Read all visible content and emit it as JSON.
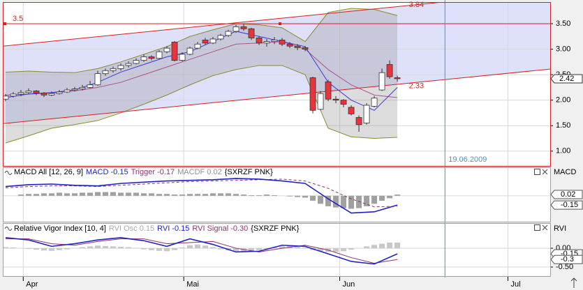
{
  "chart_data": [
    {
      "type": "candlestick",
      "xlim": [
        -0.27,
        70.9
      ],
      "ylim": [
        0.71,
        3.91
      ],
      "yticks": [
        {
          "value": 1,
          "label": "1.00"
        },
        {
          "value": 1.5,
          "label": "1.50"
        },
        {
          "value": 2,
          "label": "2.00"
        },
        {
          "value": 2.5,
          "label": "2.50"
        },
        {
          "value": 3,
          "label": "3.00"
        },
        {
          "value": 3.5,
          "label": "3.50"
        }
      ],
      "xticks": [
        {
          "value": 2.3,
          "label": "Apr"
        },
        {
          "value": 23.2,
          "label": "Mai"
        },
        {
          "value": 43.5,
          "label": "Jun"
        },
        {
          "value": 65.4,
          "label": "Jul"
        }
      ],
      "grid": true,
      "up_color": "#ffffff",
      "down_color": "#e8343c",
      "open": [
        2.02,
        2.08,
        2.12,
        2.15,
        2.18,
        2.14,
        2.1,
        2.13,
        2.16,
        2.2,
        2.22,
        2.25,
        2.3,
        2.52,
        2.58,
        2.62,
        2.68,
        2.72,
        2.78,
        2.85,
        2.82,
        2.95,
        3.14,
        2.78,
        2.9,
        3.02,
        3.18,
        3.12,
        3.2,
        3.27,
        3.35,
        3.44,
        3.4,
        3.22,
        3.12,
        3.15,
        3.18,
        3.1,
        3.06,
        3.03,
        2.44,
        1.82,
        2.36,
        2.02,
        2.0,
        1.86,
        1.66,
        1.55,
        1.88,
        2.2,
        2.7,
        2.44
      ],
      "high": [
        2.12,
        2.16,
        2.2,
        2.23,
        2.2,
        2.16,
        2.17,
        2.2,
        2.24,
        2.26,
        2.3,
        2.38,
        2.58,
        2.62,
        2.66,
        2.72,
        2.76,
        2.82,
        2.9,
        2.88,
        2.98,
        3.06,
        3.16,
        2.94,
        3.05,
        3.14,
        3.22,
        3.24,
        3.3,
        3.38,
        3.48,
        3.5,
        3.42,
        3.26,
        3.2,
        3.24,
        3.22,
        3.14,
        3.1,
        3.06,
        2.46,
        2.18,
        2.4,
        2.08,
        2.02,
        1.9,
        1.7,
        1.94,
        2.08,
        2.62,
        2.78,
        2.48
      ],
      "low": [
        1.98,
        2.05,
        2.08,
        2.12,
        2.1,
        2.06,
        2.08,
        2.11,
        2.14,
        2.17,
        2.19,
        2.23,
        2.28,
        2.48,
        2.54,
        2.58,
        2.64,
        2.7,
        2.75,
        2.78,
        2.8,
        2.92,
        2.76,
        2.76,
        2.88,
        3.0,
        3.08,
        3.1,
        3.17,
        3.24,
        3.32,
        3.36,
        3.18,
        3.08,
        3.05,
        3.1,
        3.06,
        3.02,
        2.98,
        2.96,
        1.74,
        1.8,
        1.98,
        1.94,
        1.86,
        1.7,
        1.38,
        1.52,
        1.86,
        2.18,
        2.42,
        2.36
      ],
      "close": [
        2.08,
        2.12,
        2.15,
        2.18,
        2.14,
        2.1,
        2.13,
        2.16,
        2.2,
        2.22,
        2.25,
        2.3,
        2.52,
        2.58,
        2.62,
        2.68,
        2.72,
        2.78,
        2.85,
        2.82,
        2.95,
        3.02,
        2.78,
        2.9,
        3.02,
        3.1,
        3.12,
        3.2,
        3.27,
        3.35,
        3.44,
        3.4,
        3.22,
        3.12,
        3.15,
        3.18,
        3.1,
        3.06,
        3.03,
        3.0,
        1.8,
        2.13,
        2.02,
        2.0,
        1.92,
        1.73,
        1.52,
        1.9,
        2.04,
        2.54,
        2.46,
        2.42
      ],
      "overlay_x": [
        0,
        3,
        6,
        9,
        12,
        15,
        18,
        21,
        24,
        27,
        30,
        33,
        36,
        39,
        42,
        45,
        48,
        51
      ],
      "band": {
        "color": "#8a8a30",
        "fill": "#9a9a9a",
        "upper": [
          2.55,
          2.57,
          2.55,
          2.54,
          2.62,
          2.75,
          2.9,
          3.05,
          3.25,
          3.38,
          3.5,
          3.48,
          3.42,
          3.15,
          3.72,
          3.8,
          3.78,
          3.66
        ],
        "lower": [
          1.16,
          1.3,
          1.45,
          1.52,
          1.6,
          1.75,
          1.92,
          2.1,
          2.3,
          2.48,
          2.6,
          2.68,
          2.68,
          2.5,
          1.45,
          1.28,
          1.25,
          1.27
        ]
      },
      "overlays": [
        {
          "color": "#b0508c",
          "values": [
            2.1,
            2.12,
            2.14,
            2.18,
            2.25,
            2.35,
            2.5,
            2.65,
            2.8,
            2.95,
            3.1,
            3.12,
            3.15,
            3.0,
            2.6,
            2.3,
            2.1,
            2.05
          ]
        },
        {
          "color": "#3a3adc",
          "values": [
            2.05,
            2.12,
            2.15,
            2.2,
            2.35,
            2.55,
            2.7,
            2.85,
            2.95,
            3.15,
            3.35,
            3.25,
            3.15,
            3.05,
            2.35,
            2.0,
            1.8,
            2.25
          ]
        }
      ],
      "channel_color": "#dfe1fa",
      "line_color": "#d42020",
      "trend_lines": [
        {
          "x": [
            -0.27,
            57.3
          ],
          "y": [
            3.06,
            3.93
          ]
        },
        {
          "x": [
            -0.27,
            70.9
          ],
          "y": [
            1.54,
            2.61
          ]
        }
      ],
      "hline": {
        "value": 3.5,
        "label": "3.5"
      },
      "annotations": [
        {
          "x": 51.6,
          "value": 3.84,
          "label": "3.84"
        },
        {
          "x": 51.6,
          "value": 2.33,
          "label": "2.33"
        }
      ],
      "last_price": {
        "value": 2.42,
        "label": "2.42"
      },
      "crosshair": {
        "x": 57.2,
        "label": "19.06.2009",
        "color": "#5b8db0"
      }
    },
    {
      "type": "macd",
      "title_parts": [
        {
          "text": "MACD All [12, 26, 9]",
          "color": "#000000"
        },
        {
          "text": "MACD -0.15",
          "color": "#2020c0"
        },
        {
          "text": "Trigger -0.17",
          "color": "#903070"
        },
        {
          "text": "MACDF 0.02",
          "color": "#909090"
        },
        {
          "text": "{SXRZF PNK}",
          "color": "#000000"
        }
      ],
      "axis_label": "MACD",
      "ylim": [
        -0.42,
        0.45
      ],
      "hist_color": "#a0a0a0",
      "histogram": [
        null,
        null,
        0.02,
        0.03,
        0.03,
        0.04,
        0.04,
        0.05,
        0.04,
        0.04,
        0.05,
        0.05,
        0.06,
        0.06,
        0.06,
        0.05,
        0.05,
        0.05,
        0.04,
        0.04,
        0.03,
        0.03,
        0.02,
        0.02,
        0.03,
        0.03,
        0.03,
        0.04,
        0.04,
        0.04,
        0.03,
        0.02,
        0.01,
        0.01,
        0.02,
        0.01,
        0.0,
        -0.01,
        -0.02,
        -0.03,
        -0.08,
        -0.13,
        -0.17,
        -0.19,
        -0.2,
        -0.21,
        -0.2,
        -0.17,
        -0.13,
        -0.08,
        -0.04,
        0.02
      ],
      "series": [
        {
          "color": "#903070",
          "dashed": true,
          "values": [
            0.13,
            0.15,
            0.16,
            0.16,
            0.15,
            0.17,
            0.19,
            0.21,
            0.23,
            0.24,
            0.25,
            0.26,
            0.27,
            0.24,
            0.12,
            -0.05,
            -0.18,
            -0.17
          ]
        },
        {
          "color": "#2020c0",
          "dashed": false,
          "values": [
            0.15,
            0.18,
            0.19,
            0.17,
            0.16,
            0.2,
            0.22,
            0.24,
            0.25,
            0.26,
            0.28,
            0.27,
            0.24,
            0.2,
            -0.05,
            -0.28,
            -0.26,
            -0.15
          ]
        }
      ],
      "badges": [
        {
          "value": 0.02,
          "label": "0.02"
        },
        {
          "value": -0.15,
          "label": "-0.15"
        }
      ]
    },
    {
      "type": "rvi",
      "title_parts": [
        {
          "text": "Relative Vigor Index [10, 4]",
          "color": "#000000"
        },
        {
          "text": "RVI Osc 0.15",
          "color": "#a8a8a8"
        },
        {
          "text": "RVI -0.15",
          "color": "#2020c0"
        },
        {
          "text": "RVI Signal -0.30",
          "color": "#903070"
        },
        {
          "text": "{SXRZF PNK}",
          "color": "#000000"
        }
      ],
      "axis_label": "RVI",
      "ylim": [
        -0.74,
        0.65
      ],
      "hist_color": "#c8c8c8",
      "yticks": [
        {
          "value": 0,
          "label": "0.00"
        },
        {
          "value": -0.5,
          "label": "-0.50"
        }
      ],
      "histogram": [
        0.03,
        0.02,
        0.0,
        -0.02,
        -0.04,
        -0.06,
        -0.07,
        -0.05,
        -0.03,
        0.0,
        0.03,
        0.05,
        0.07,
        0.06,
        0.05,
        0.04,
        0.03,
        0.01,
        -0.03,
        -0.05,
        -0.07,
        -0.08,
        -0.05,
        0.02,
        0.08,
        0.1,
        0.07,
        0.03,
        -0.03,
        -0.06,
        -0.08,
        -0.1,
        -0.09,
        -0.05,
        -0.02,
        0.02,
        0.05,
        0.07,
        0.05,
        0.02,
        -0.05,
        -0.08,
        -0.1,
        -0.1,
        -0.08,
        -0.04,
        0.0,
        0.05,
        0.09,
        0.12,
        0.15,
        0.15
      ],
      "series": [
        {
          "color": "#903070",
          "dashed": false,
          "values": [
            0.25,
            0.25,
            0.12,
            0.08,
            0.18,
            0.25,
            0.25,
            0.12,
            0.15,
            0.18,
            0.0,
            -0.1,
            0.0,
            0.08,
            -0.05,
            -0.25,
            -0.4,
            -0.3
          ]
        },
        {
          "color": "#2020c0",
          "dashed": false,
          "values": [
            0.28,
            0.22,
            0.05,
            0.12,
            0.22,
            0.28,
            0.2,
            0.05,
            0.25,
            0.1,
            -0.1,
            -0.08,
            0.08,
            0.05,
            -0.15,
            -0.35,
            -0.42,
            -0.15
          ]
        }
      ],
      "badges": [
        {
          "value": -0.15,
          "label": "-0.15"
        },
        {
          "value": -0.3,
          "label": "-0.3"
        }
      ]
    }
  ]
}
